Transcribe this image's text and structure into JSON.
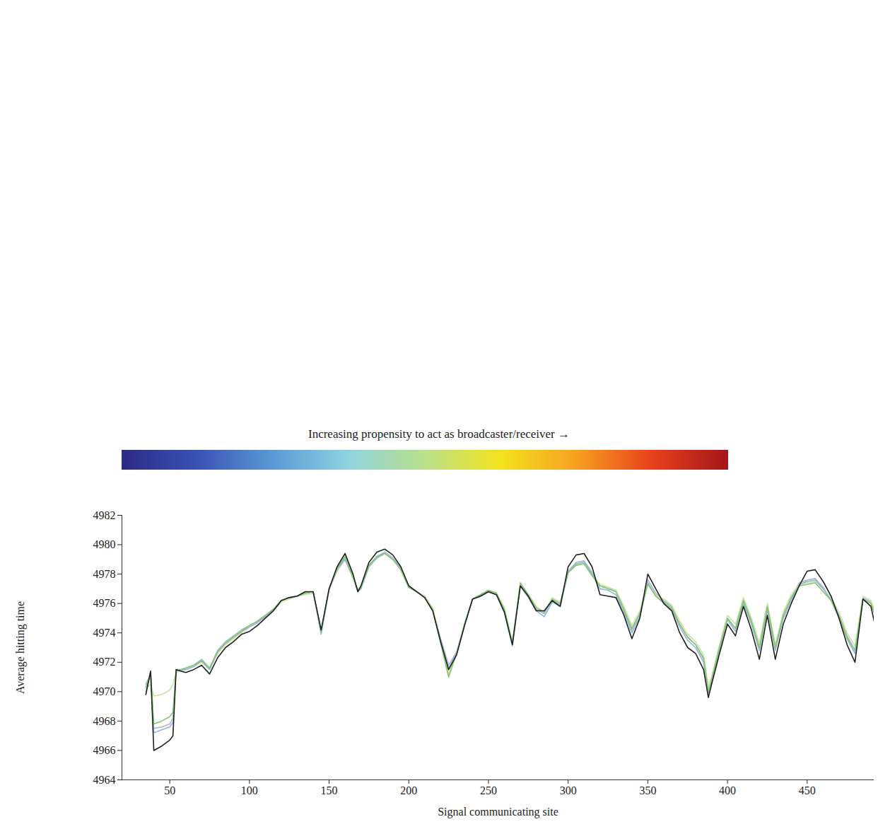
{
  "chart_data": {
    "type": "line",
    "x_label": "Signal communicating site",
    "y_label": "Average hitting time",
    "xlim": [
      20,
      492
    ],
    "ylim": [
      4964,
      4982
    ],
    "xticks": [
      50,
      100,
      150,
      200,
      250,
      300,
      350,
      400,
      450
    ],
    "yticks": [
      4964,
      4966,
      4968,
      4970,
      4972,
      4974,
      4976,
      4978,
      4980,
      4982
    ],
    "grid": false,
    "colorbar": {
      "label": "Increasing propensity to act as broadcaster/receiver →",
      "colors": [
        "#2b2a85",
        "#3a52b5",
        "#5a9ad6",
        "#8fd3df",
        "#b9e08a",
        "#f2e21c",
        "#f6a020",
        "#e8401c",
        "#a3161a"
      ]
    },
    "x": [
      35,
      38,
      40,
      45,
      50,
      52,
      54,
      60,
      65,
      70,
      75,
      80,
      85,
      90,
      95,
      100,
      105,
      110,
      115,
      120,
      125,
      130,
      135,
      140,
      145,
      150,
      155,
      160,
      165,
      168,
      170,
      175,
      180,
      185,
      190,
      195,
      200,
      205,
      210,
      215,
      220,
      225,
      230,
      235,
      240,
      245,
      250,
      255,
      260,
      265,
      270,
      275,
      280,
      285,
      290,
      295,
      300,
      305,
      310,
      315,
      320,
      325,
      330,
      335,
      340,
      345,
      350,
      355,
      360,
      365,
      370,
      375,
      380,
      385,
      388,
      390,
      395,
      400,
      405,
      410,
      415,
      420,
      425,
      430,
      435,
      440,
      445,
      450,
      455,
      460,
      465,
      470,
      475,
      480,
      485,
      490,
      492
    ],
    "series": [
      {
        "color": "#a8b4d0",
        "values": [
          4970.5,
          4971.2,
          4967.5,
          4967.6,
          4967.8,
          4968.2,
          4971.4,
          4971.6,
          4971.8,
          4972.2,
          4971.6,
          4972.8,
          4973.4,
          4973.8,
          4974.2,
          4974.5,
          4974.8,
          4975.2,
          4975.6,
          4976.2,
          4976.4,
          4976.5,
          4976.7,
          4976.8,
          4974,
          4977,
          4978.3,
          4979.1,
          4977.8,
          4976.9,
          4977.1,
          4978.6,
          4979.2,
          4979.5,
          4979.1,
          4978.4,
          4977.2,
          4976.8,
          4976.5,
          4975.6,
          4973.6,
          4971.8,
          4972.7,
          4974.6,
          4976.3,
          4976.5,
          4976.8,
          4976.6,
          4975.5,
          4973.2,
          4977.3,
          4976.5,
          4975.6,
          4975.3,
          4976.2,
          4975.9,
          4978.2,
          4978.8,
          4978.9,
          4978.1,
          4977.2,
          4977.1,
          4976.8,
          4975.6,
          4974.2,
          4975.3,
          4977.6,
          4976.7,
          4976.2,
          4975.8,
          4974.6,
          4973.7,
          4973.2,
          4972.2,
          4970,
          4970.8,
          4973,
          4975,
          4974.3,
          4976.2,
          4974.8,
          4973,
          4975.8,
          4973,
          4975.2,
          4976.4,
          4977.4,
          4977.6,
          4977.7,
          4977.1,
          4976.3,
          4975.2,
          4973.8,
          4972.8,
          4976.4,
          4976.1,
          4975.5
        ]
      },
      {
        "color": "#c9e3a6",
        "values": [
          4970.2,
          4970.5,
          4969.7,
          4969.8,
          4970.1,
          4970.5,
          4971.3,
          4971.5,
          4971.7,
          4972,
          4971.5,
          4972.6,
          4973.2,
          4973.6,
          4974,
          4974.4,
          4974.7,
          4975.1,
          4975.5,
          4976.1,
          4976.3,
          4976.5,
          4976.6,
          4976.7,
          4974.1,
          4976.9,
          4978.2,
          4979,
          4977.7,
          4977,
          4977.1,
          4978.5,
          4979.1,
          4979.4,
          4979,
          4978.3,
          4977.1,
          4976.8,
          4976.5,
          4975.7,
          4973.4,
          4971.2,
          4972.6,
          4974.6,
          4976.3,
          4976.6,
          4976.9,
          4976.7,
          4975.7,
          4973.4,
          4977.4,
          4976.6,
          4975.8,
          4975.4,
          4976.4,
          4976.1,
          4978.1,
          4978.6,
          4978.7,
          4977.9,
          4977.3,
          4977.1,
          4976.9,
          4975.8,
          4974.5,
          4975.5,
          4977.4,
          4976.6,
          4976.3,
          4975.9,
          4974.8,
          4973.9,
          4973.4,
          4972.5,
          4970.3,
          4971,
          4973.2,
          4975.2,
          4974.6,
          4976.4,
          4975,
          4973.3,
          4976,
          4973.2,
          4975.4,
          4976.6,
          4977.3,
          4977.4,
          4977.5,
          4977,
          4976.4,
          4975.4,
          4974,
          4973.1,
          4976.5,
          4976.2,
          4975.6
        ]
      },
      {
        "color": "#94b3de",
        "values": [
          4970,
          4971.3,
          4967.2,
          4967.4,
          4967.6,
          4967.9,
          4971.5,
          4971.5,
          4971.7,
          4972.1,
          4971.5,
          4972.7,
          4973.3,
          4973.7,
          4974.1,
          4974.4,
          4974.7,
          4975.1,
          4975.5,
          4976.2,
          4976.4,
          4976.5,
          4976.7,
          4976.8,
          4973.9,
          4977,
          4978.3,
          4979,
          4977.8,
          4976.8,
          4977,
          4978.5,
          4979.1,
          4979.4,
          4979,
          4978.3,
          4977.1,
          4976.8,
          4976.4,
          4975.5,
          4973.5,
          4971.6,
          4972.6,
          4974.5,
          4976.3,
          4976.5,
          4976.8,
          4976.6,
          4975.4,
          4973.1,
          4977.2,
          4976.4,
          4975.5,
          4975.1,
          4976.1,
          4975.8,
          4978.1,
          4978.7,
          4978.8,
          4978,
          4977,
          4976.9,
          4976.6,
          4975.4,
          4974,
          4975.1,
          4977.4,
          4976.5,
          4976,
          4975.6,
          4974.4,
          4973.5,
          4973,
          4972,
          4969.9,
          4970.7,
          4972.9,
          4974.9,
          4974.1,
          4976,
          4974.6,
          4972.8,
          4975.6,
          4972.8,
          4975,
          4976.2,
          4977.3,
          4977.5,
          4977.6,
          4977,
          4976.2,
          4975,
          4973.6,
          4972.6,
          4976.3,
          4976,
          4975.4
        ]
      },
      {
        "color": "#86c66c",
        "values": [
          4970.3,
          4971.2,
          4967.8,
          4968,
          4968.3,
          4968.6,
          4971.4,
          4971.6,
          4971.8,
          4972.1,
          4971.6,
          4972.7,
          4973.3,
          4973.7,
          4974.1,
          4974.5,
          4974.8,
          4975.2,
          4975.6,
          4976.2,
          4976.4,
          4976.5,
          4976.7,
          4976.8,
          4974.1,
          4977,
          4978.4,
          4979.2,
          4977.8,
          4976.9,
          4977.1,
          4978.6,
          4979.2,
          4979.4,
          4979,
          4978.3,
          4977.1,
          4976.8,
          4976.4,
          4975.6,
          4973.3,
          4971,
          4972.6,
          4974.6,
          4976.3,
          4976.6,
          4976.9,
          4976.7,
          4975.6,
          4973.3,
          4977.4,
          4976.6,
          4975.7,
          4975.4,
          4976.3,
          4976,
          4978.1,
          4978.6,
          4978.7,
          4977.9,
          4977.2,
          4977,
          4976.8,
          4975.6,
          4974.3,
          4975.3,
          4977.3,
          4976.5,
          4976.1,
          4975.7,
          4974.6,
          4973.7,
          4973.2,
          4972.3,
          4970,
          4970.8,
          4973,
          4975,
          4974.3,
          4976.2,
          4974.8,
          4973,
          4975.8,
          4973,
          4975.2,
          4976.4,
          4977.2,
          4977.3,
          4977.4,
          4976.8,
          4976.2,
          4975.1,
          4973.7,
          4972.8,
          4976.3,
          4976,
          4975.4
        ]
      },
      {
        "color": "#222222",
        "values": [
          4969.8,
          4971.4,
          4966,
          4966.3,
          4966.7,
          4967,
          4971.5,
          4971.3,
          4971.5,
          4971.8,
          4971.2,
          4972.3,
          4973,
          4973.4,
          4973.9,
          4974.1,
          4974.5,
          4975,
          4975.5,
          4976.2,
          4976.4,
          4976.5,
          4976.8,
          4976.8,
          4974.2,
          4977,
          4978.5,
          4979.4,
          4978,
          4976.8,
          4977.2,
          4978.8,
          4979.5,
          4979.7,
          4979.3,
          4978.5,
          4977.2,
          4976.8,
          4976.4,
          4975.5,
          4973.4,
          4971.5,
          4972.5,
          4974.5,
          4976.3,
          4976.5,
          4976.8,
          4976.6,
          4975.4,
          4973.2,
          4977.2,
          4976.5,
          4975.5,
          4975.5,
          4976.2,
          4975.8,
          4978.5,
          4979.3,
          4979.4,
          4978.5,
          4976.6,
          4976.5,
          4976.4,
          4975.2,
          4973.6,
          4975,
          4978,
          4977,
          4976,
          4975.5,
          4974,
          4973,
          4972.6,
          4971.5,
          4969.6,
          4970.5,
          4972.6,
          4974.6,
          4973.8,
          4975.8,
          4974.2,
          4972.2,
          4975.2,
          4972.2,
          4974.6,
          4976,
          4977.2,
          4978.2,
          4978.3,
          4977.5,
          4976.5,
          4975,
          4973.2,
          4972,
          4976.3,
          4975.8,
          4974.8
        ]
      }
    ]
  }
}
